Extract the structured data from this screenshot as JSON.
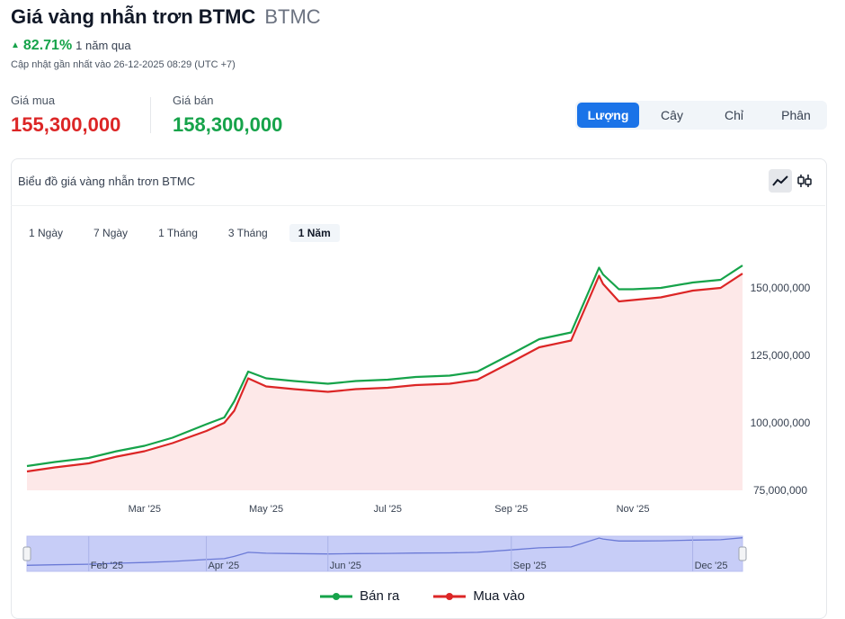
{
  "header": {
    "title": "Giá vàng nhẫn trơn BTMC",
    "symbol": "BTMC",
    "change_pct": "82.71%",
    "change_period": "1 năm qua",
    "updated": "Cập nhật gần nhất vào 26-12-2025 08:29 (UTC +7)"
  },
  "prices": {
    "buy_label": "Giá mua",
    "buy_value": "155,300,000",
    "sell_label": "Giá bán",
    "sell_value": "158,300,000"
  },
  "units": [
    {
      "label": "Lượng",
      "active": true
    },
    {
      "label": "Cây",
      "active": false
    },
    {
      "label": "Chỉ",
      "active": false
    },
    {
      "label": "Phân",
      "active": false
    }
  ],
  "card": {
    "title": "Biểu đồ giá vàng nhẫn trơn BTMC",
    "ranges": [
      "1 Ngày",
      "7 Ngày",
      "1 Tháng",
      "3 Tháng",
      "1 Năm"
    ],
    "active_range": "1 Năm"
  },
  "colors": {
    "sell": "#16a34a",
    "buy": "#dc2626",
    "active": "#1a73e8",
    "area": "#fde8e8",
    "navigator": "#c7cdf7"
  },
  "chart_data": {
    "type": "line",
    "title": "",
    "xlabel": "",
    "ylabel": "",
    "ylim": [
      75000000,
      160000000
    ],
    "xlim": [
      "2025-01-01",
      "2025-12-26"
    ],
    "y_ticks": [
      "75,000,000",
      "100,000,000",
      "125,000,000",
      "150,000,000"
    ],
    "y_tick_values": [
      75000000,
      100000000,
      125000000,
      150000000
    ],
    "x_ticks": [
      {
        "label": "Mar '25",
        "date": "2025-03-01"
      },
      {
        "label": "May '25",
        "date": "2025-05-01"
      },
      {
        "label": "Jul '25",
        "date": "2025-07-01"
      },
      {
        "label": "Sep '25",
        "date": "2025-09-01"
      },
      {
        "label": "Nov '25",
        "date": "2025-11-01"
      }
    ],
    "navigator_ticks": [
      {
        "label": "Feb '25",
        "date": "2025-02-01"
      },
      {
        "label": "Apr '25",
        "date": "2025-04-01"
      },
      {
        "label": "Jun '25",
        "date": "2025-06-01"
      },
      {
        "label": "Sep '25",
        "date": "2025-09-01"
      },
      {
        "label": "Dec '25",
        "date": "2025-12-01"
      }
    ],
    "dates": [
      "2025-01-01",
      "2025-01-15",
      "2025-02-01",
      "2025-02-15",
      "2025-03-01",
      "2025-03-15",
      "2025-04-01",
      "2025-04-10",
      "2025-04-15",
      "2025-04-22",
      "2025-05-01",
      "2025-05-15",
      "2025-06-01",
      "2025-06-15",
      "2025-07-01",
      "2025-07-15",
      "2025-08-01",
      "2025-08-15",
      "2025-09-01",
      "2025-09-15",
      "2025-10-01",
      "2025-10-15",
      "2025-10-17",
      "2025-10-25",
      "2025-11-01",
      "2025-11-15",
      "2025-12-01",
      "2025-12-15",
      "2025-12-26"
    ],
    "series": [
      {
        "name": "Bán ra",
        "values": [
          84000000,
          85500000,
          87000000,
          89500000,
          91500000,
          94500000,
          99500000,
          102000000,
          108000000,
          119000000,
          116500000,
          115500000,
          114500000,
          115500000,
          116000000,
          117000000,
          117500000,
          119000000,
          125500000,
          131000000,
          133500000,
          157500000,
          155000000,
          149500000,
          149500000,
          150000000,
          152000000,
          153000000,
          158300000
        ]
      },
      {
        "name": "Mua vào",
        "values": [
          82000000,
          83500000,
          85000000,
          87500000,
          89500000,
          92500000,
          97000000,
          100000000,
          104500000,
          116500000,
          113500000,
          112500000,
          111500000,
          112500000,
          113000000,
          114000000,
          114500000,
          116000000,
          122500000,
          128000000,
          130500000,
          154500000,
          151500000,
          145000000,
          145500000,
          146500000,
          149000000,
          150000000,
          155300000
        ]
      }
    ]
  }
}
